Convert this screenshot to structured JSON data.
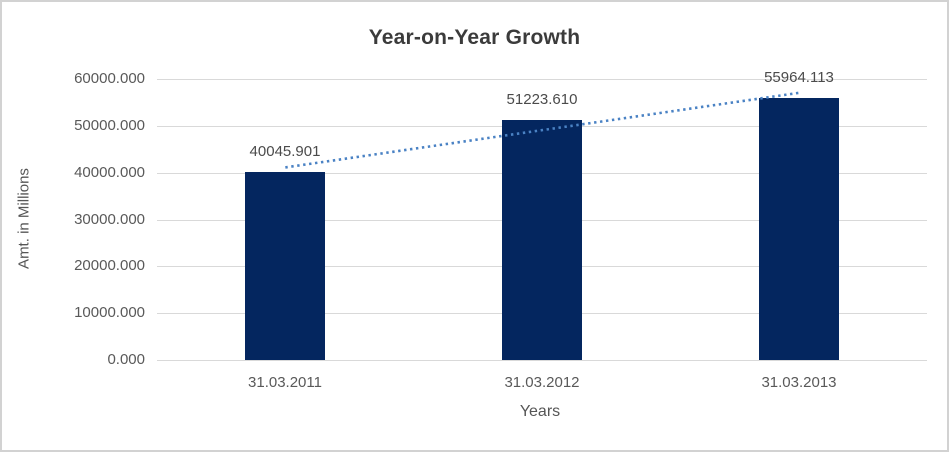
{
  "chart_data": {
    "type": "bar",
    "title": "Year-on-Year Growth",
    "xlabel": "Years",
    "ylabel": "Amt. in Millions",
    "categories": [
      "31.03.2011",
      "31.03.2012",
      "31.03.2013"
    ],
    "values": [
      40045.901,
      51223.61,
      55964.113
    ],
    "data_labels": [
      "40045.901",
      "51223.610",
      "55964.113"
    ],
    "ylim": [
      0,
      60000
    ],
    "ytick_step": 10000,
    "ytick_labels": [
      "0.000",
      "10000.000",
      "20000.000",
      "30000.000",
      "40000.000",
      "50000.000",
      "60000.000"
    ],
    "grid": true,
    "legend": "none",
    "colors": {
      "bar": "#04265f",
      "trendline": "#4a82c4",
      "gridline": "#d9d9d9"
    },
    "trendline": {
      "type": "linear",
      "style": "dotted"
    }
  }
}
